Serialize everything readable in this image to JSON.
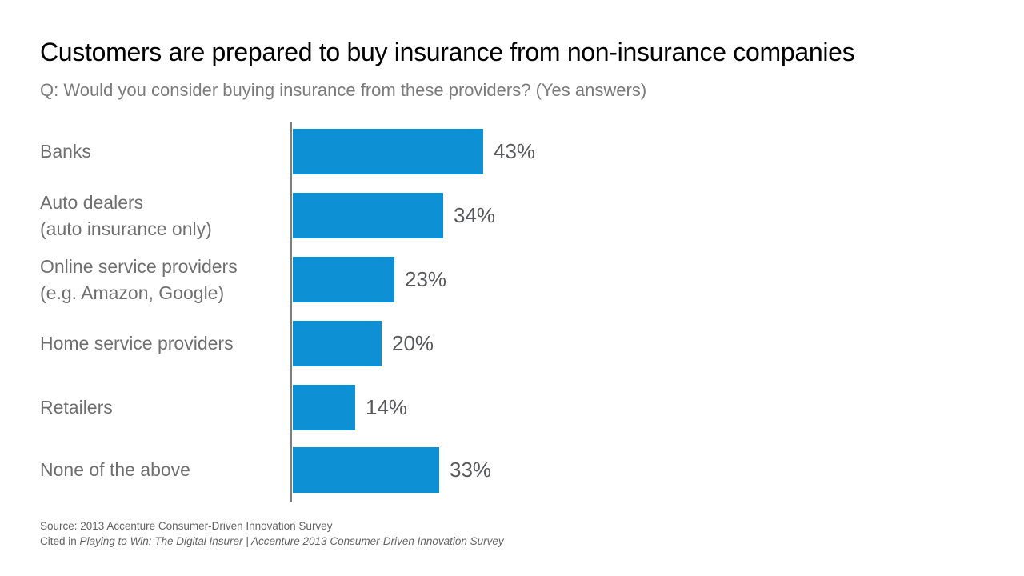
{
  "chart_data": {
    "type": "bar",
    "orientation": "horizontal",
    "title": "Customers are prepared to buy insurance from non-insurance companies",
    "question": "Q: Would you consider buying insurance from these providers? (Yes answers)",
    "categories": [
      "Banks",
      "Auto dealers (auto insurance only)",
      "Online service providers (e.g. Amazon, Google)",
      "Home service providers",
      "Retailers",
      "None of the above"
    ],
    "category_lines": [
      [
        "Banks"
      ],
      [
        "Auto dealers",
        "(auto insurance only)"
      ],
      [
        "Online service providers",
        "(e.g. Amazon, Google)"
      ],
      [
        "Home service providers"
      ],
      [
        "Retailers"
      ],
      [
        "None of the above"
      ]
    ],
    "values": [
      43,
      34,
      23,
      20,
      14,
      33
    ],
    "value_labels": [
      "43%",
      "34%",
      "23%",
      "20%",
      "14%",
      "33%"
    ],
    "unit": "%",
    "xlim": [
      0,
      50
    ],
    "grid": false,
    "legend": false,
    "bar_color": "#0d90d4",
    "axis_color": "#7f7f7f"
  },
  "footer": {
    "source": "Source: 2013 Accenture Consumer-Driven Innovation Survey",
    "cited_prefix": "Cited in ",
    "cited_italic": "Playing to Win: The Digital Insurer | Accenture 2013 Consumer-Driven Innovation Survey"
  },
  "colors": {
    "background": "#ffffff",
    "title_text": "#000000",
    "subtitle_text": "#7b7b7b",
    "category_text": "#6f6f6f",
    "value_text": "#58595b",
    "source_text": "#636363"
  }
}
